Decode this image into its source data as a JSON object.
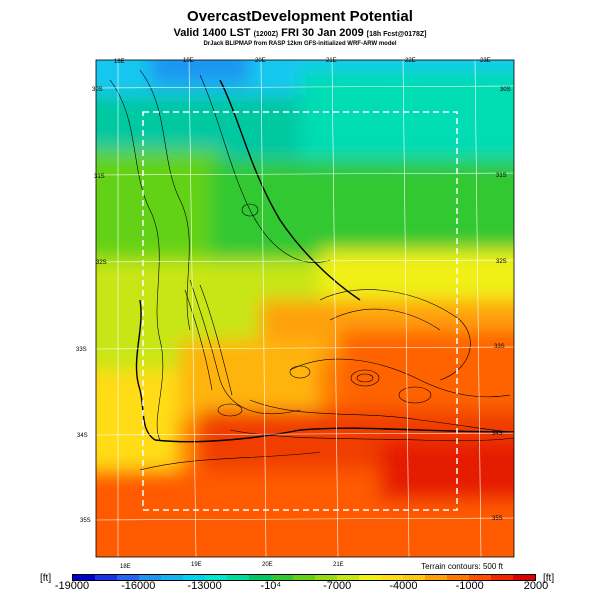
{
  "title": "OvercastDevelopment Potential",
  "valid_line": {
    "main": "Valid 1400 LST",
    "utc": "(1200Z)",
    "date": "FRI 30 Jan 2009",
    "forecast": "[18h Fcst@0178Z]"
  },
  "credit_line": "DrJack BLIPMAP from RASP 12km GFS-initialized WRF-ARW model",
  "terrain_note": "Terrain contours: 500 ft",
  "units": {
    "left": "[ft]",
    "right": "[ft]"
  },
  "lon_labels": [
    "18E",
    "19E",
    "20E",
    "21E",
    "22E",
    "23E"
  ],
  "lat_labels": [
    "30S",
    "31S",
    "32S",
    "33S",
    "34S",
    "35S"
  ],
  "colorbar": {
    "min": -19000,
    "max": 2000,
    "tick_labels": [
      "-19000",
      "-16000",
      "-13000",
      "-10⁴",
      "-7000",
      "-4000",
      "-1000",
      "2000"
    ],
    "colors": [
      "#0000c8",
      "#1e32e6",
      "#2864f0",
      "#1e96f0",
      "#14b4f0",
      "#00d2f0",
      "#00e6d2",
      "#00dca0",
      "#00c864",
      "#32c832",
      "#64d214",
      "#96dc14",
      "#c8e614",
      "#f0f014",
      "#ffdc14",
      "#ffc814",
      "#ffa00a",
      "#ff7800",
      "#ff5000",
      "#f02800",
      "#dc0000"
    ]
  }
}
